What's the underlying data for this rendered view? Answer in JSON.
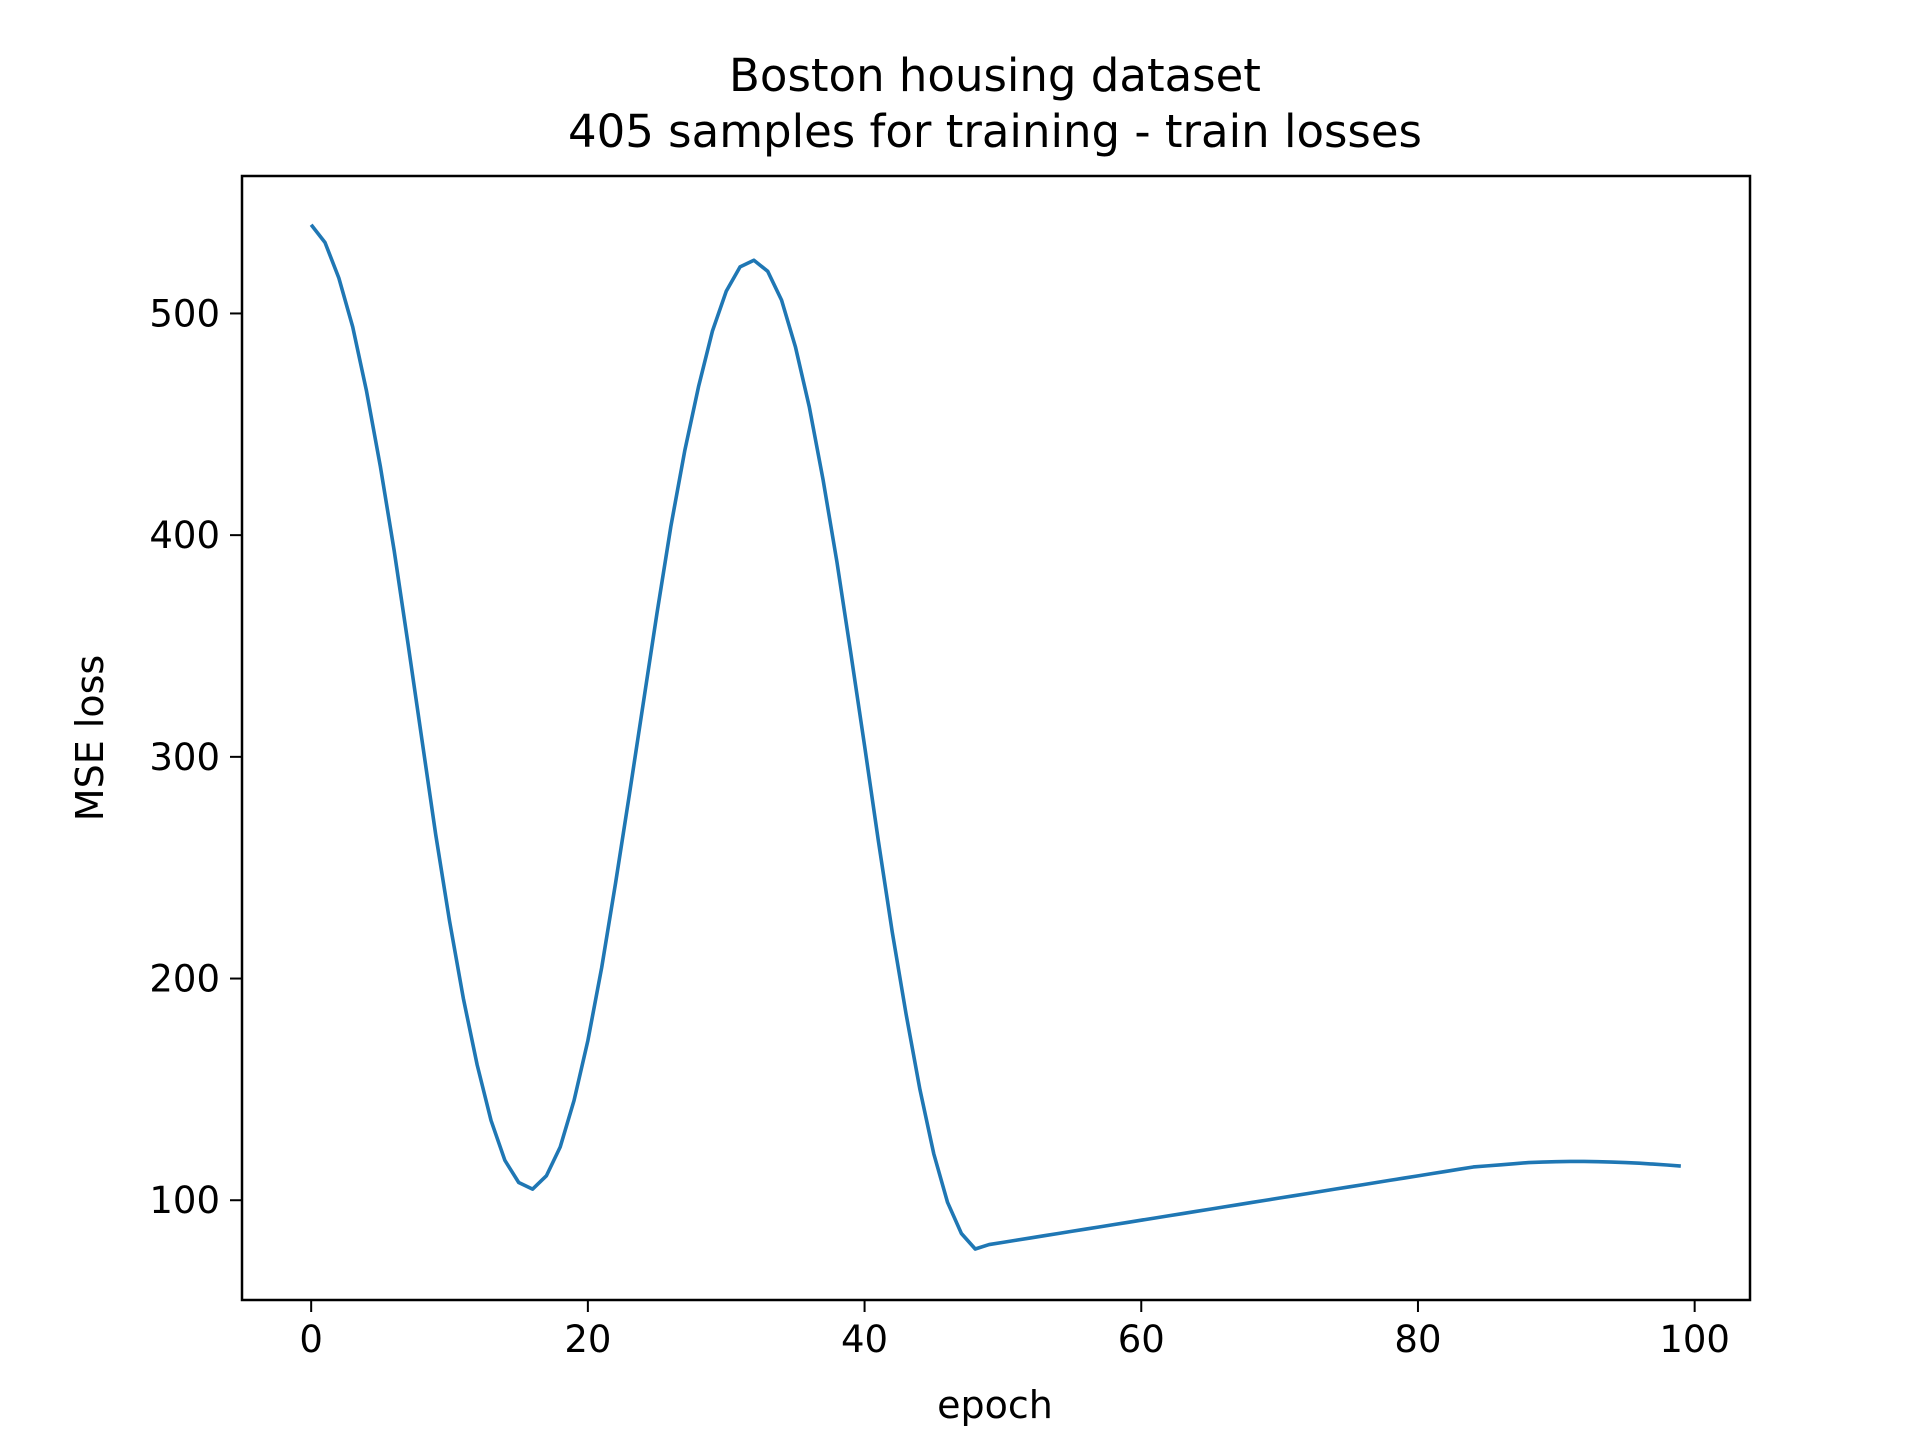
{
  "chart_data": {
    "type": "line",
    "title": "Boston housing dataset",
    "subtitle": "405 samples for training - train losses",
    "xlabel": "epoch",
    "ylabel": "MSE loss",
    "xlim": [
      -5,
      104
    ],
    "ylim": [
      55,
      562
    ],
    "xticks": [
      0,
      20,
      40,
      60,
      80,
      100
    ],
    "yticks": [
      100,
      200,
      300,
      400,
      500
    ],
    "grid": false,
    "legend": "none",
    "colors": {
      "line": "#1f77b4",
      "frame": "#000000",
      "background": "#ffffff"
    },
    "series": [
      {
        "x": [
          0,
          1,
          2,
          3,
          4,
          5,
          6,
          7,
          8,
          9,
          10,
          11,
          12,
          13,
          14,
          15,
          16,
          17,
          18,
          19,
          20,
          21,
          22,
          23,
          24,
          25,
          26,
          27,
          28,
          29,
          30,
          31,
          32,
          33,
          34,
          35,
          36,
          37,
          38,
          39,
          40,
          41,
          42,
          43,
          44,
          45,
          46,
          47,
          48,
          49,
          50,
          51,
          52,
          53,
          54,
          55,
          56,
          57,
          58,
          59,
          60,
          61,
          62,
          63,
          64,
          65,
          66,
          67,
          68,
          69,
          70,
          71,
          72,
          73,
          74,
          75,
          76,
          77,
          78,
          79,
          80,
          81,
          82,
          83,
          84,
          85,
          86,
          87,
          88,
          89,
          90,
          91,
          92,
          93,
          94,
          95,
          96,
          97,
          98,
          99
        ],
        "y": [
          540,
          532,
          516,
          494,
          465,
          431,
          393,
          351,
          308,
          265,
          226,
          191,
          161,
          136,
          118,
          108,
          105,
          111,
          124,
          145,
          172,
          205,
          243,
          283,
          324,
          365,
          404,
          438,
          467,
          492,
          510,
          521,
          524,
          519,
          506,
          485,
          458,
          425,
          388,
          347,
          305,
          262,
          221,
          184,
          150,
          121,
          99,
          85,
          78,
          80,
          81,
          82,
          83,
          84,
          85,
          86,
          87,
          88,
          89,
          90,
          91,
          92,
          93,
          94,
          95,
          96,
          97,
          98,
          99,
          100,
          101,
          102,
          103,
          104,
          105,
          106,
          107,
          108,
          109,
          110,
          111,
          112,
          113,
          114,
          115,
          115.5,
          116,
          116.5,
          117,
          117.2,
          117.4,
          117.5,
          117.5,
          117.4,
          117.2,
          117,
          116.7,
          116.3,
          115.9,
          115.4
        ]
      }
    ]
  }
}
